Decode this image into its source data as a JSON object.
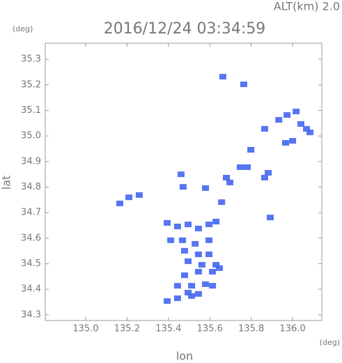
{
  "chart_data": {
    "type": "scatter",
    "top_label": "ALT(km) 2.0",
    "y_unit": "(deg)",
    "title": "2016/12/24 03:34:59",
    "x_unit": "(deg)",
    "x_label": "lon",
    "y_label": "lat",
    "xlim": [
      134.805,
      136.141
    ],
    "ylim": [
      34.278,
      35.363
    ],
    "xticks": [
      {
        "value": 135,
        "label": "135.0"
      },
      135.2,
      135.4,
      135.6,
      135.8,
      {
        "value": 136,
        "label": "136.0"
      }
    ],
    "yticks": [
      35.3,
      35.2,
      35.1,
      {
        "value": 35,
        "label": "35.0"
      },
      34.9,
      34.8,
      34.7,
      34.6,
      34.5,
      34.4,
      34.3
    ],
    "series": [
      {
        "color": "#4466ee",
        "x": [
          135.663,
          135.764,
          135.933,
          135.973,
          136.017,
          136.04,
          136.067,
          136.084,
          135.865,
          135.966,
          136.0,
          135.798,
          135.781,
          135.747,
          135.882,
          135.865,
          135.68,
          135.697,
          135.579,
          135.657,
          135.461,
          135.471,
          135.209,
          135.259,
          135.165,
          135.892,
          135.394,
          135.444,
          135.495,
          135.545,
          135.596,
          135.63,
          135.411,
          135.468,
          135.529,
          135.596,
          135.478,
          135.545,
          135.596,
          135.495,
          135.562,
          135.63,
          135.478,
          135.545,
          135.613,
          135.646,
          135.444,
          135.512,
          135.579,
          135.613,
          135.495,
          135.545,
          135.394,
          135.444,
          135.512
        ],
        "y": [
          35.232,
          35.202,
          35.063,
          35.082,
          35.096,
          35.047,
          35.028,
          35.014,
          35.028,
          34.973,
          34.981,
          34.946,
          34.878,
          34.878,
          34.856,
          34.837,
          34.837,
          34.818,
          34.796,
          34.741,
          34.85,
          34.801,
          34.76,
          34.769,
          34.736,
          34.681,
          34.66,
          34.646,
          34.654,
          34.638,
          34.654,
          34.665,
          34.592,
          34.592,
          34.578,
          34.592,
          34.551,
          34.537,
          34.537,
          34.51,
          34.496,
          34.496,
          34.455,
          34.469,
          34.469,
          34.483,
          34.414,
          34.414,
          34.42,
          34.414,
          34.387,
          34.382,
          34.354,
          34.365,
          34.374
        ]
      }
    ]
  }
}
